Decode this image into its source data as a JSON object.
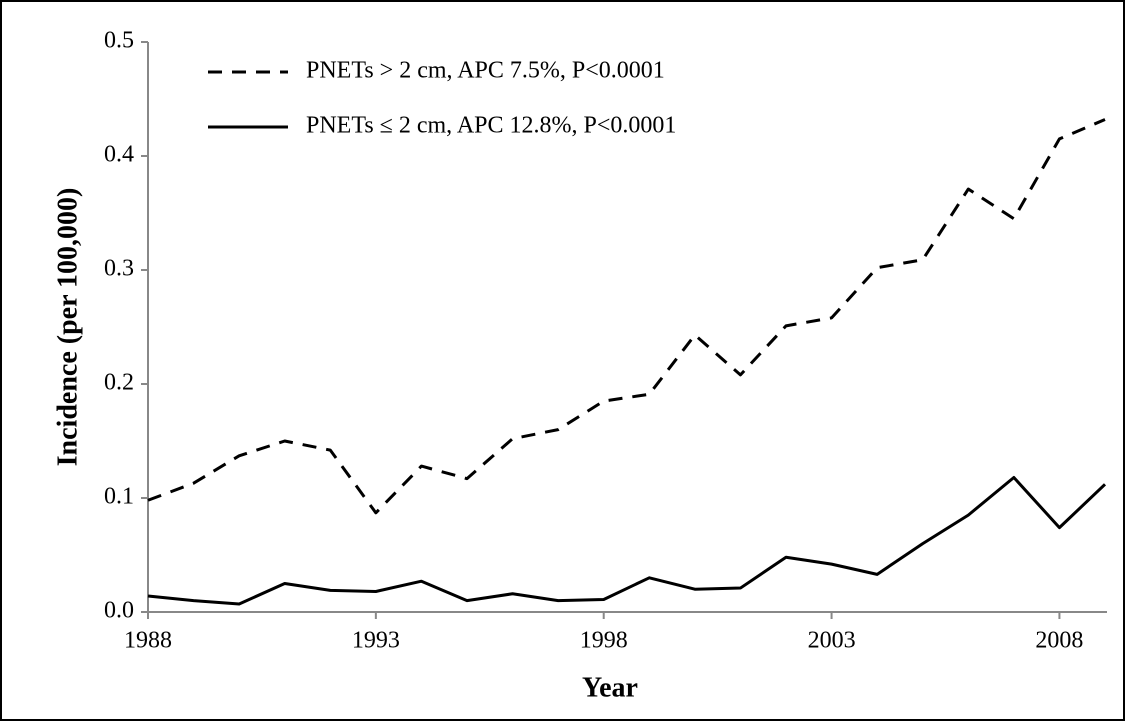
{
  "chart_data": {
    "type": "line",
    "x_label": "Year",
    "y_label": "Incidence (per 100,000)",
    "x": [
      1988,
      1989,
      1990,
      1991,
      1992,
      1993,
      1994,
      1995,
      1996,
      1997,
      1998,
      1999,
      2000,
      2001,
      2002,
      2003,
      2004,
      2005,
      2006,
      2007,
      2008,
      2009
    ],
    "series": [
      {
        "name": "PNETs > 2 cm, APC 7.5%, P<0.0001",
        "color": "#000000",
        "dash": true,
        "values": [
          0.098,
          0.113,
          0.137,
          0.15,
          0.142,
          0.087,
          0.128,
          0.117,
          0.152,
          0.16,
          0.185,
          0.191,
          0.243,
          0.208,
          0.251,
          0.258,
          0.302,
          0.309,
          0.371,
          0.345,
          0.415,
          0.432
        ]
      },
      {
        "name": "PNETs ≤ 2 cm, APC 12.8%, P<0.0001",
        "color": "#000000",
        "dash": false,
        "values": [
          0.014,
          0.01,
          0.007,
          0.025,
          0.019,
          0.018,
          0.027,
          0.01,
          0.016,
          0.01,
          0.011,
          0.03,
          0.02,
          0.021,
          0.048,
          0.042,
          0.033,
          0.06,
          0.085,
          0.118,
          0.074,
          0.112
        ]
      }
    ],
    "xlim": [
      1988,
      2009
    ],
    "xticks": [
      1988,
      1993,
      1998,
      2003,
      2008
    ],
    "ylim": [
      0,
      0.5
    ],
    "yticks": [
      {
        "value": 0,
        "label": "0.0"
      },
      0.1,
      0.2,
      0.3,
      0.4,
      0.5
    ],
    "legend": "top-left",
    "grid": false
  }
}
